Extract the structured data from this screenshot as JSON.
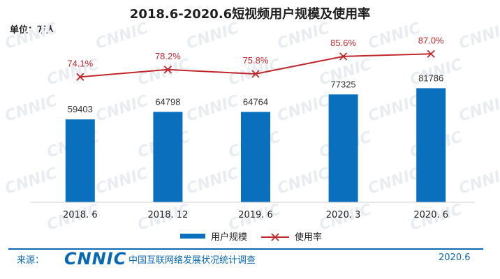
{
  "header": {
    "title": "2018.6-2020.6短视频用户规模及使用率",
    "unit": "单位：万人"
  },
  "footer": {
    "source_label": "来源：",
    "logo_text": "CNNIC",
    "org": "中国互联网络发展状况统计调查",
    "date": "2020.6"
  },
  "watermark": "CNNIC",
  "colors": {
    "bar": "#0a6fbd",
    "line": "#c0282d",
    "label": "#c0282d",
    "brand": "#0a67b4"
  },
  "chart_data": {
    "type": "bar",
    "title": "2018.6-2020.6短视频用户规模及使用率",
    "xlabel": "",
    "ylabel": "单位：万人",
    "categories": [
      "2018. 6",
      "2018. 12",
      "2019. 6",
      "2020. 3",
      "2020. 6"
    ],
    "series": [
      {
        "name": "用户规模",
        "type": "bar",
        "values": [
          59403,
          64798,
          64764,
          77325,
          81786
        ]
      },
      {
        "name": "使用率",
        "type": "line",
        "values": [
          74.1,
          78.2,
          75.8,
          85.6,
          87.0
        ],
        "labels": [
          "74.1%",
          "78.2%",
          "75.8%",
          "85.6%",
          "87.0%"
        ]
      }
    ],
    "ylim": [
      0,
      120000
    ],
    "y2lim": [
      0,
      100
    ],
    "legend": "bottom-center",
    "grid": false
  }
}
